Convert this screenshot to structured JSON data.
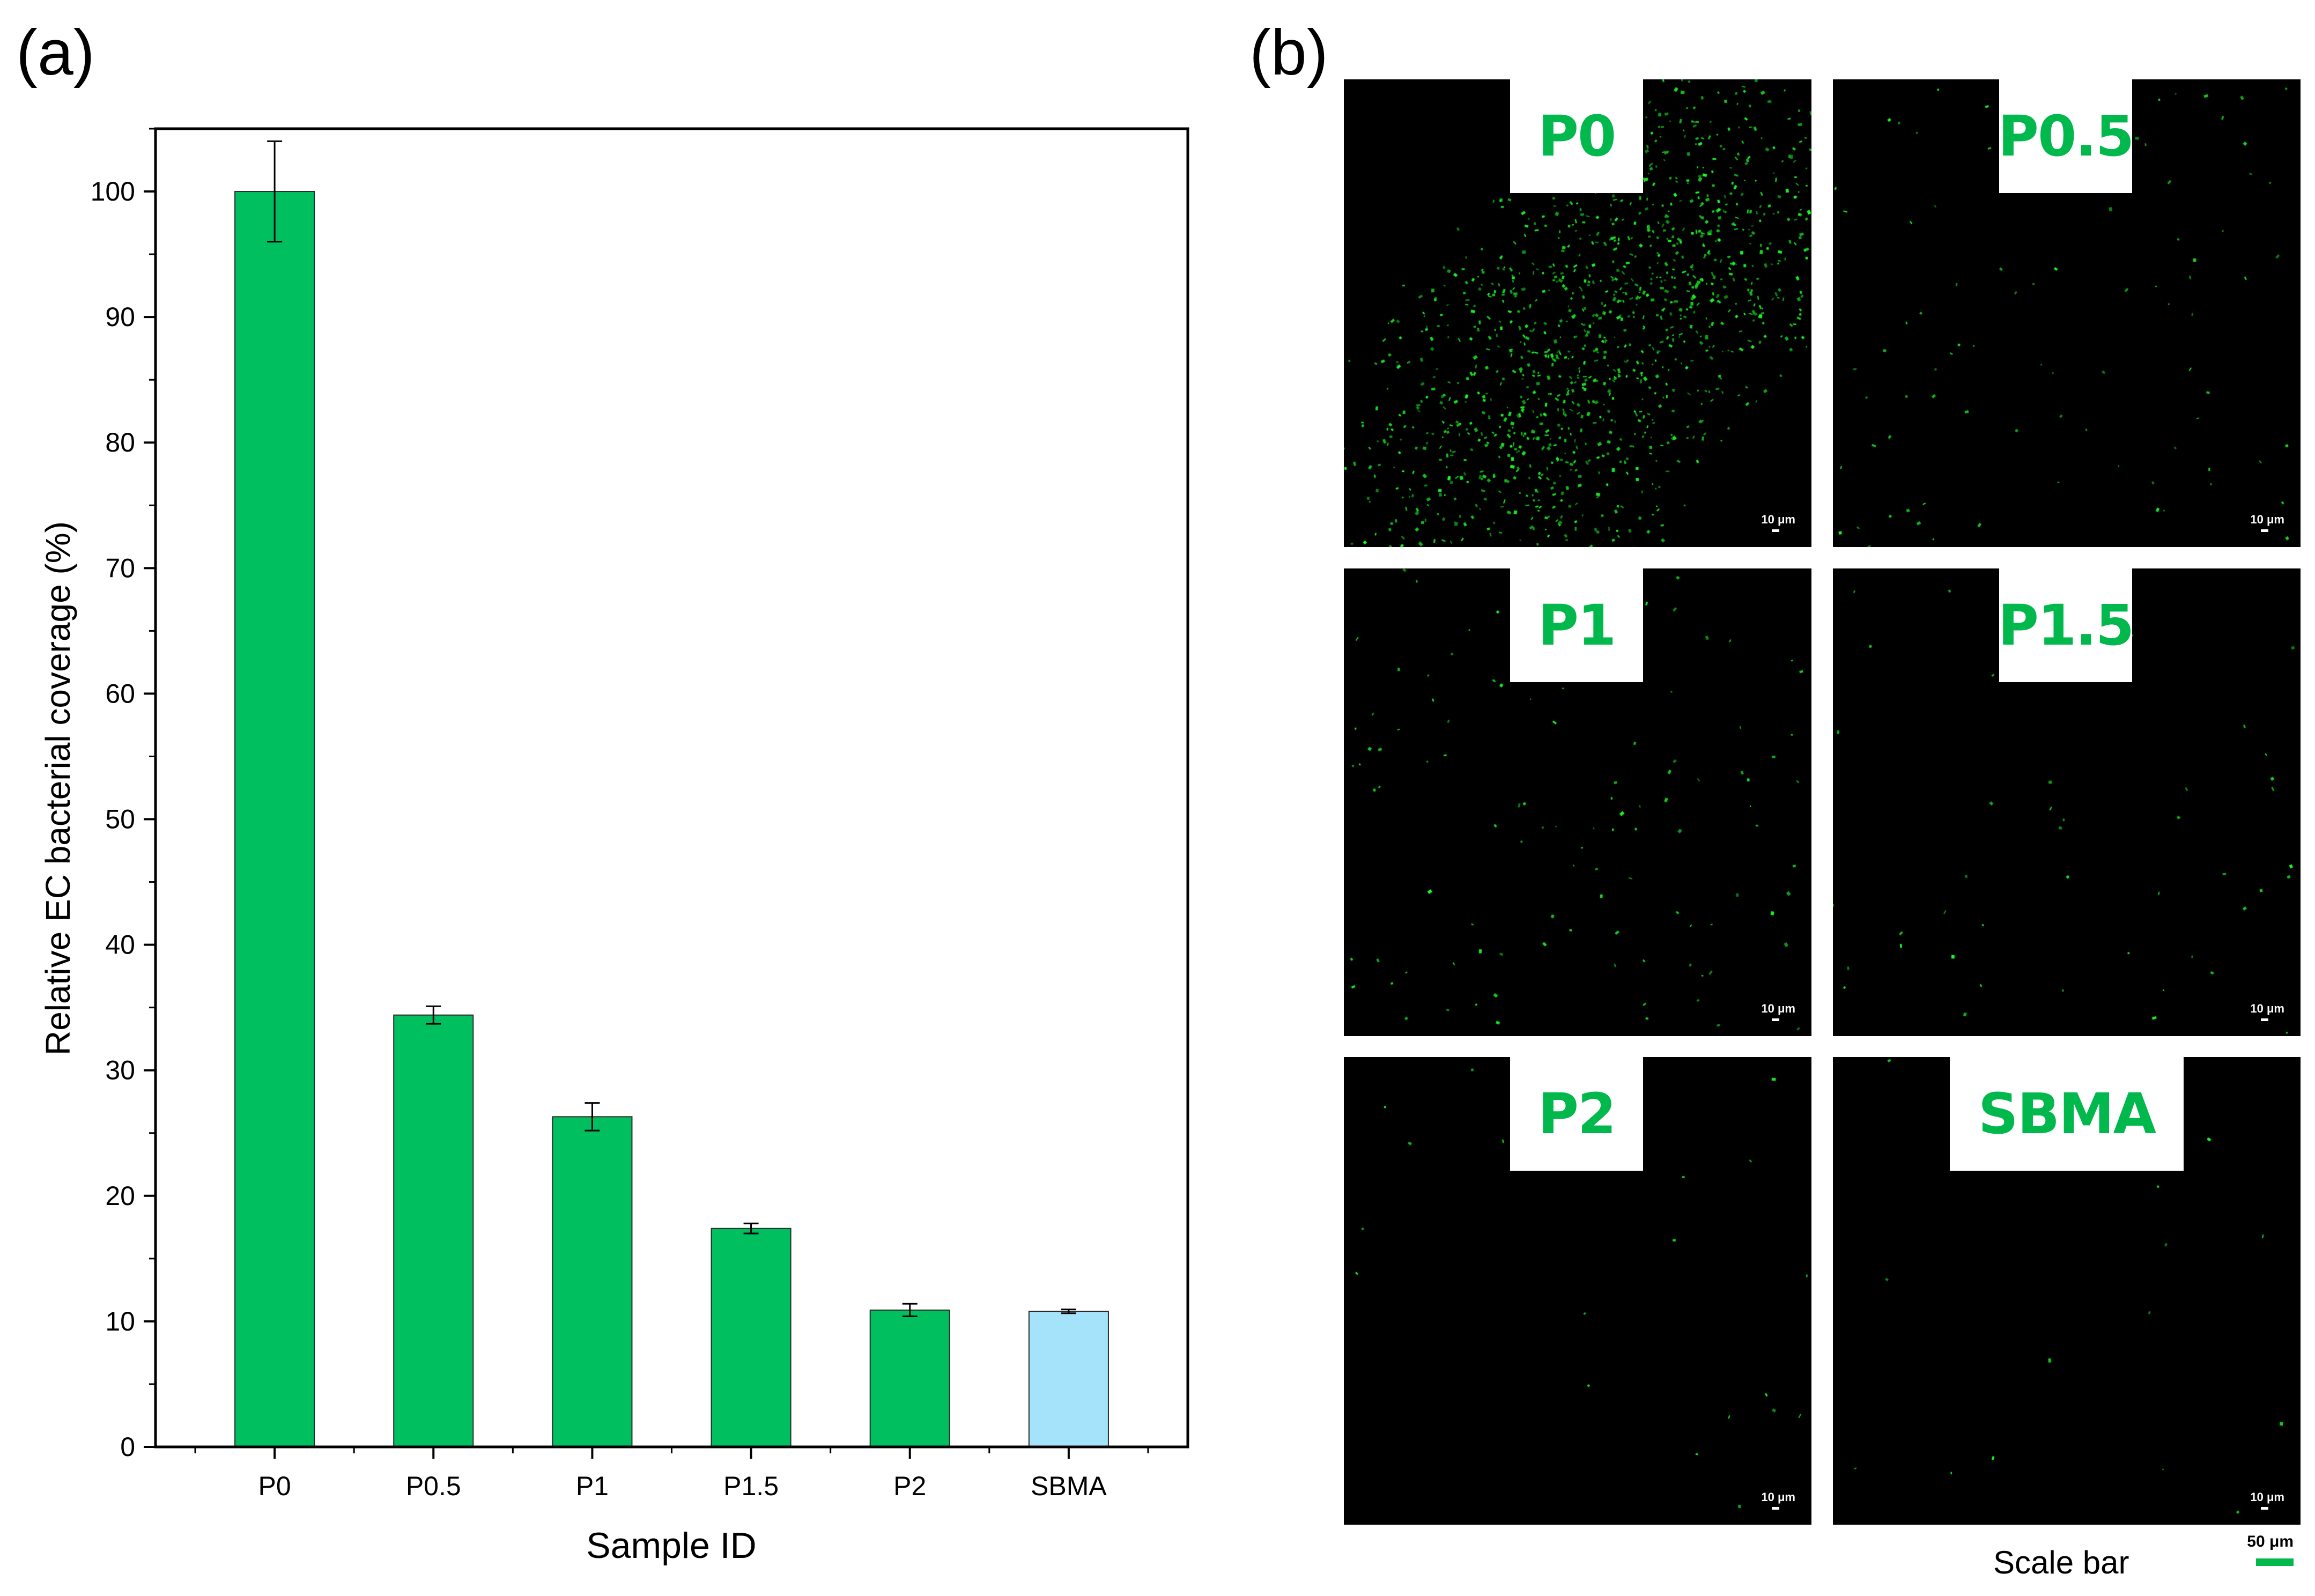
{
  "panel_a": {
    "letter": "(a)"
  },
  "panel_b": {
    "letter": "(b)"
  },
  "chart_data": {
    "type": "bar",
    "categories": [
      "P0",
      "P0.5",
      "P1",
      "P1.5",
      "P2",
      "SBMA"
    ],
    "values": [
      100,
      34.4,
      26.3,
      17.4,
      10.9,
      10.8
    ],
    "errors": [
      4.0,
      0.7,
      1.1,
      0.4,
      0.5,
      0.15
    ],
    "colors": [
      "#00bf5f",
      "#00bf5f",
      "#00bf5f",
      "#00bf5f",
      "#00bf5f",
      "#a5e3fb"
    ],
    "xlabel": "Sample ID",
    "ylabel": "Relative EC bacterial coverage (%)",
    "ylim": [
      0,
      105
    ],
    "yticks": [
      0,
      10,
      20,
      30,
      40,
      50,
      60,
      70,
      80,
      90,
      100
    ],
    "grid": false
  },
  "micrographs": [
    {
      "label": "P0",
      "scale": "10 μm",
      "density": 1400
    },
    {
      "label": "P0.5",
      "scale": "10 μm",
      "density": 90
    },
    {
      "label": "P1",
      "scale": "10 μm",
      "density": 110
    },
    {
      "label": "P1.5",
      "scale": "10 μm",
      "density": 45
    },
    {
      "label": "P2",
      "scale": "10 μm",
      "density": 20
    },
    {
      "label": "SBMA",
      "scale": "10 μm",
      "density": 18
    }
  ],
  "scalebar": {
    "label": "Scale bar",
    "unit": "50 μm"
  },
  "colors": {
    "bar_green": "#00bf5f",
    "bar_blue": "#a5e3fb",
    "label_green": "#00b84c"
  }
}
